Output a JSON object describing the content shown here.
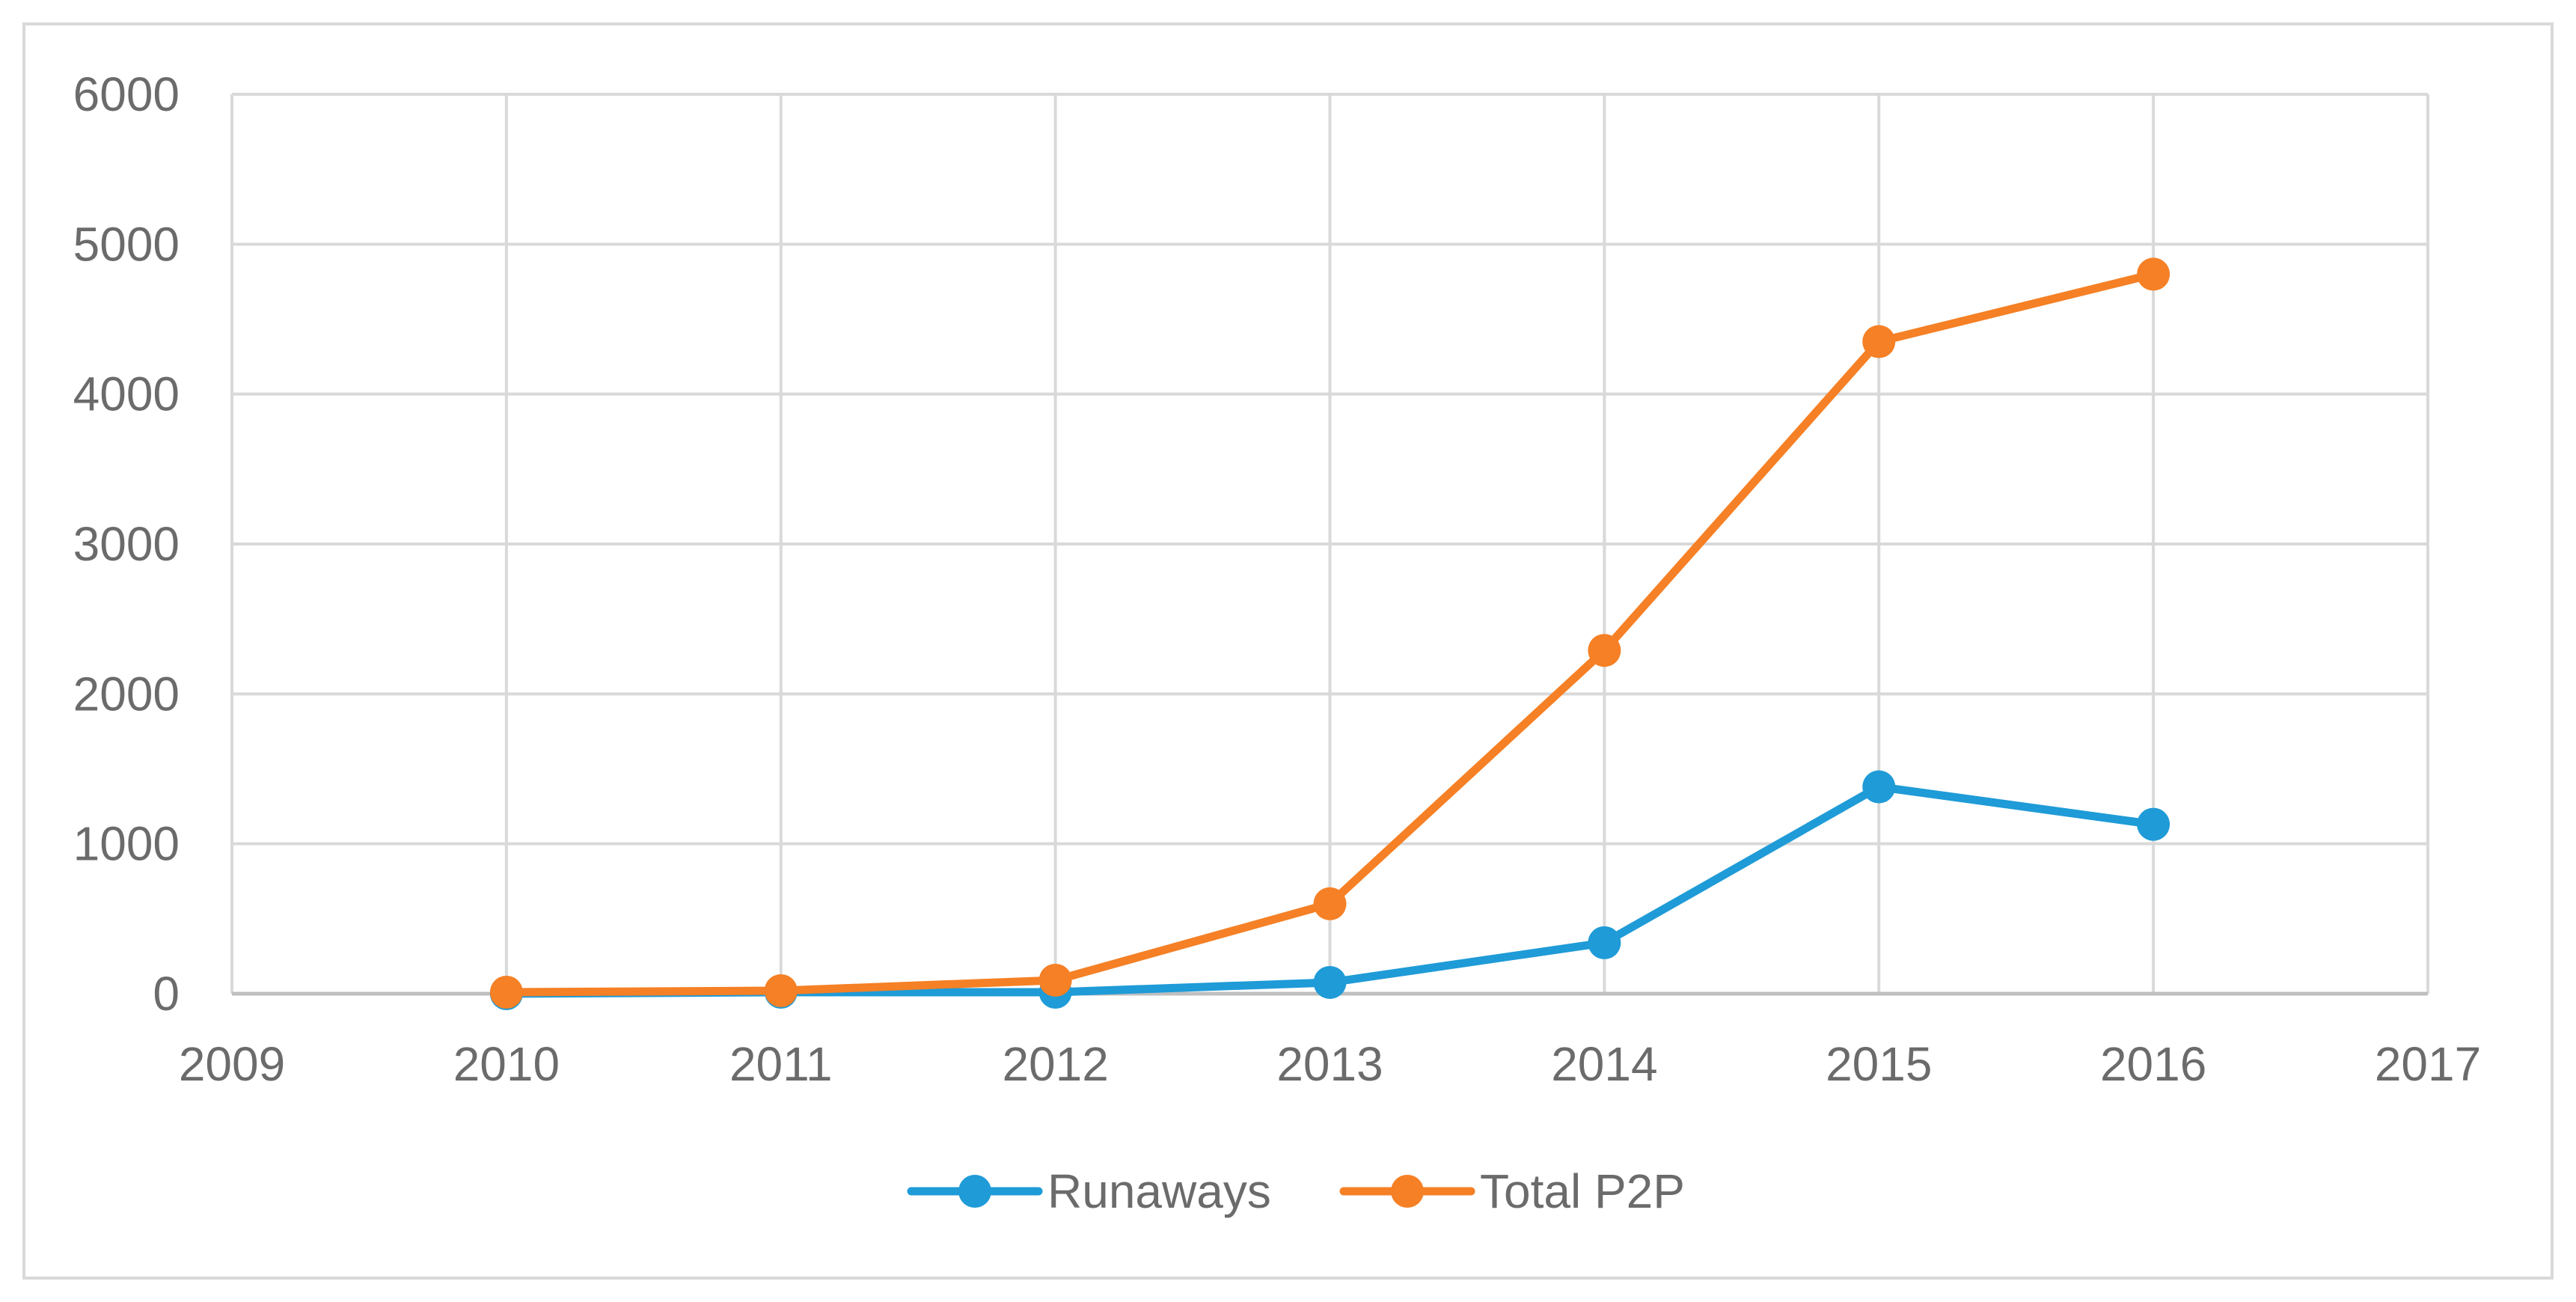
{
  "chart_data": {
    "type": "line",
    "xlim": [
      2009,
      2017
    ],
    "ylim": [
      0,
      6000
    ],
    "x_ticks": [
      2009,
      2010,
      2011,
      2012,
      2013,
      2014,
      2015,
      2016,
      2017
    ],
    "y_ticks": [
      0,
      1000,
      2000,
      3000,
      4000,
      5000,
      6000
    ],
    "grid": true,
    "legend_position": "bottom",
    "series": [
      {
        "name": "Runaways",
        "color": "#1f9bd7",
        "points": [
          {
            "x": 2010,
            "y": 0
          },
          {
            "x": 2011,
            "y": 10
          },
          {
            "x": 2012,
            "y": 10
          },
          {
            "x": 2013,
            "y": 75
          },
          {
            "x": 2014,
            "y": 340
          },
          {
            "x": 2015,
            "y": 1380
          },
          {
            "x": 2016,
            "y": 1130
          }
        ]
      },
      {
        "name": "Total P2P",
        "color": "#f58025",
        "points": [
          {
            "x": 2010,
            "y": 10
          },
          {
            "x": 2011,
            "y": 20
          },
          {
            "x": 2012,
            "y": 90
          },
          {
            "x": 2013,
            "y": 600
          },
          {
            "x": 2014,
            "y": 2290
          },
          {
            "x": 2015,
            "y": 4350
          },
          {
            "x": 2016,
            "y": 4800
          }
        ]
      }
    ]
  }
}
